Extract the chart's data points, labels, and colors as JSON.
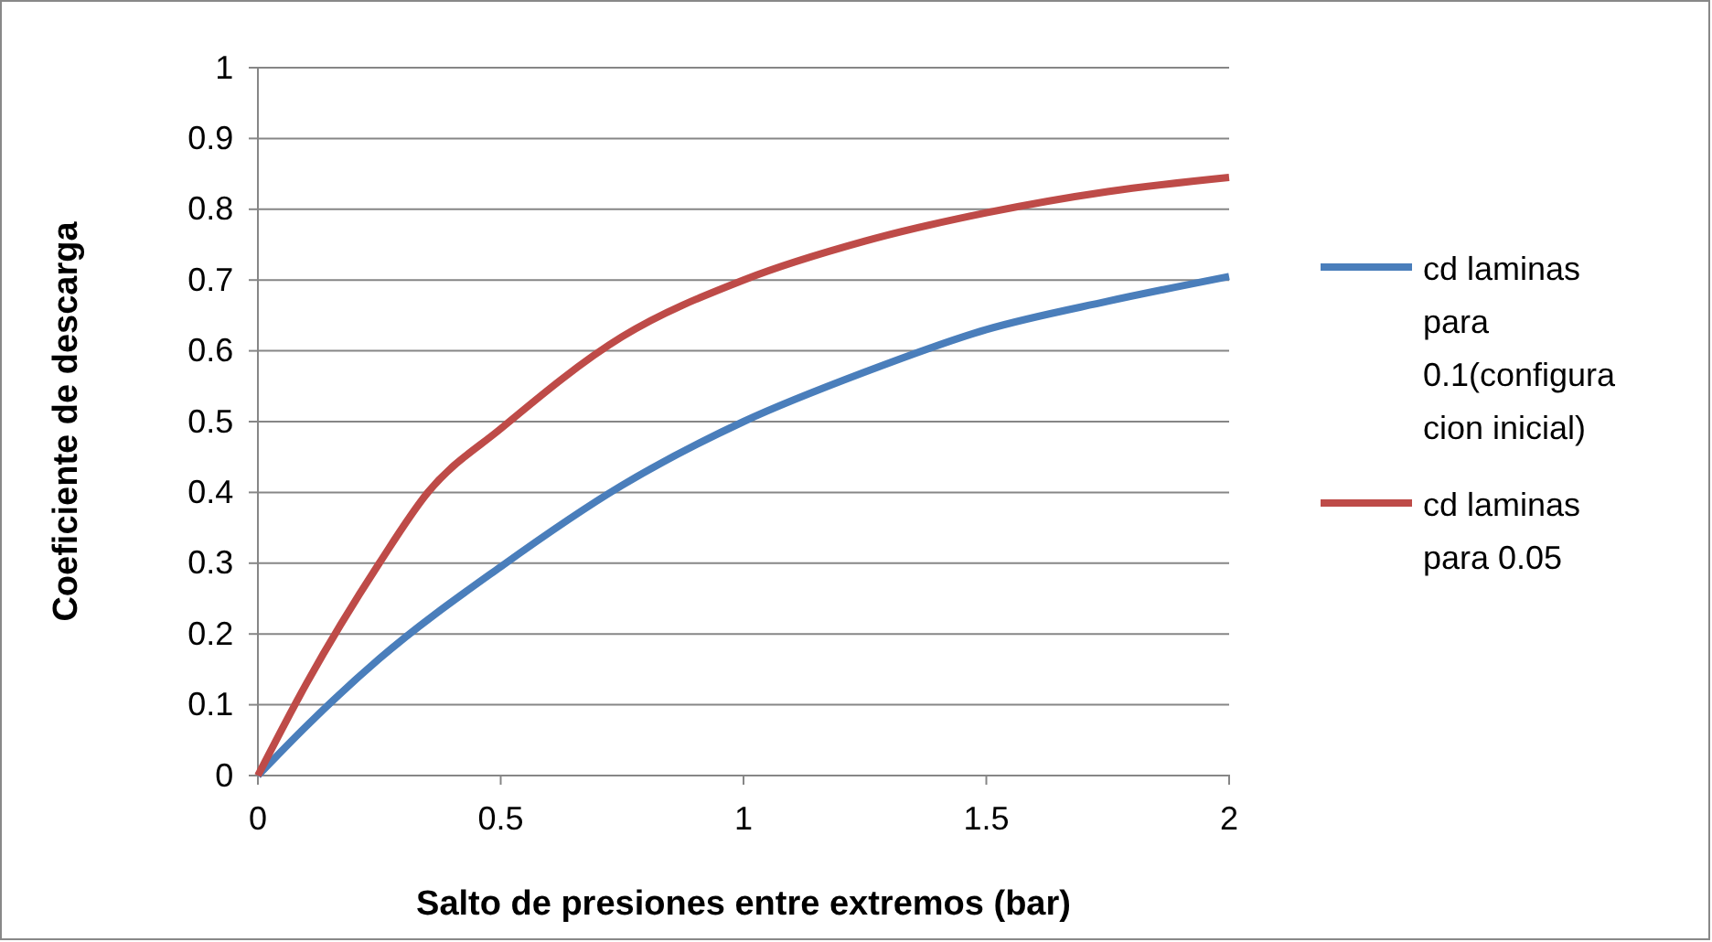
{
  "chart_data": {
    "type": "line",
    "xlabel": "Salto de presiones entre extremos (bar)",
    "ylabel": "Coeficiente de descarga",
    "xlim": [
      0,
      2
    ],
    "xticks": [
      0,
      0.5,
      1,
      1.5,
      2
    ],
    "ylim": [
      0,
      1
    ],
    "yticks": [
      0,
      0.1,
      0.2,
      0.3,
      0.4,
      0.5,
      0.6,
      0.7,
      0.8,
      0.9,
      1
    ],
    "grid": "y",
    "legend": "right",
    "marker": "none",
    "line_style": "solid",
    "series": [
      {
        "name": "cd laminas para 0.1(configuracion inicial)",
        "color": "#4a7ebb",
        "x": [
          0,
          0.1,
          0.25,
          0.5,
          0.75,
          1,
          1.25,
          1.5,
          1.75,
          2
        ],
        "values": [
          0,
          0.07,
          0.165,
          0.295,
          0.41,
          0.5,
          0.57,
          0.63,
          0.67,
          0.705
        ]
      },
      {
        "name": "cd laminas para 0.05",
        "color": "#be4b48",
        "x": [
          0,
          0.1,
          0.25,
          0.35,
          0.5,
          0.75,
          1,
          1.25,
          1.5,
          1.75,
          2
        ],
        "values": [
          0,
          0.13,
          0.3,
          0.4,
          0.49,
          0.62,
          0.7,
          0.755,
          0.795,
          0.825,
          0.845
        ]
      }
    ]
  }
}
